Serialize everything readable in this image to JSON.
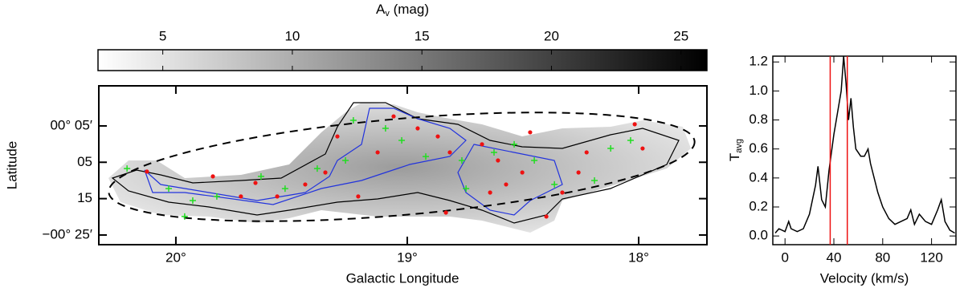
{
  "chart_data": [
    {
      "type": "colorbar",
      "title": {
        "main": "A",
        "sub": "v",
        "rest": " (mag)"
      },
      "clim": [
        2.5,
        26
      ],
      "colormap": [
        "#ffffff",
        "#000000"
      ],
      "ticks": [
        5,
        10,
        15,
        20,
        25
      ]
    },
    {
      "type": "scatter",
      "xlabel": "Galactic Longitude",
      "ylabel": "Latitude",
      "xlim": [
        20.333,
        17.705
      ],
      "ylim": [
        -0.461,
        0.267
      ],
      "xticks": [
        {
          "value": 20,
          "label": "20°"
        },
        {
          "value": 19,
          "label": "19°"
        },
        {
          "value": 18,
          "label": "18°"
        }
      ],
      "yticks": [
        {
          "value": 0.0833,
          "label": "00° 05′"
        },
        {
          "value": -0.0833,
          "label": "05"
        },
        {
          "value": -0.25,
          "label": "15"
        },
        {
          "value": -0.4167,
          "label": "−00° 25′"
        }
      ],
      "series": [
        {
          "color": "#ee1111",
          "marker": "dot",
          "x": [
            20.125,
            19.656,
            19.562,
            19.441,
            19.354,
            19.212,
            19.128,
            19.059,
            18.955,
            18.868,
            18.816,
            18.677,
            18.608,
            18.642,
            18.573,
            18.503,
            18.469,
            18.33,
            18.225,
            18.017,
            17.983,
            18.833,
            18.399,
            18.26,
            19.302,
            19.84,
            19.719
          ],
          "y": [
            -0.126,
            -0.178,
            -0.24,
            -0.185,
            -0.13,
            -0.24,
            -0.038,
            0.127,
            0.072,
            0.035,
            -0.038,
            -0.001,
            -0.075,
            -0.222,
            -0.185,
            -0.13,
            0.054,
            -0.222,
            -0.038,
            0.091,
            -0.02,
            -0.314,
            -0.332,
            -0.13,
            0.035,
            -0.148,
            -0.24
          ]
        },
        {
          "color": "#22dd22",
          "marker": "cross",
          "x": [
            20.211,
            20.031,
            19.927,
            19.823,
            19.632,
            19.528,
            19.389,
            19.267,
            19.233,
            19.094,
            19.024,
            18.92,
            18.764,
            18.625,
            18.538,
            18.451,
            18.364,
            18.191,
            18.121,
            18.035,
            19.962,
            18.746
          ],
          "y": [
            -0.112,
            -0.204,
            -0.259,
            -0.24,
            -0.148,
            -0.204,
            -0.112,
            -0.075,
            0.109,
            0.072,
            0.017,
            -0.057,
            -0.075,
            -0.038,
            -0.001,
            -0.075,
            -0.185,
            -0.167,
            -0.02,
            0.017,
            -0.332,
            -0.204
          ]
        }
      ]
    },
    {
      "type": "line",
      "xlabel": "Velocity (km/s)",
      "ylabel": {
        "main": "T",
        "sub": "avg"
      },
      "xlim": [
        -10,
        140
      ],
      "ylim": [
        -0.06,
        1.24
      ],
      "xticks": [
        0,
        40,
        80,
        120
      ],
      "yticks": [
        {
          "value": 0,
          "label": "0.0"
        },
        0.2,
        0.4,
        0.6,
        0.8,
        {
          "value": 1,
          "label": "1.0"
        },
        1.2
      ],
      "vlines": [
        37,
        51
      ],
      "vline_color": "#ee1111",
      "series": [
        {
          "color": "#000000",
          "x": [
            -8,
            -5,
            0,
            3,
            5,
            10,
            15,
            20,
            25,
            27,
            30,
            33,
            36,
            40,
            43,
            46,
            48,
            50,
            52,
            54,
            56,
            58,
            62,
            65,
            68,
            70,
            73,
            76,
            80,
            85,
            90,
            95,
            100,
            103,
            106,
            110,
            115,
            120,
            125,
            128,
            131,
            135,
            139
          ],
          "values": [
            0.02,
            0.05,
            0.03,
            0.1,
            0.05,
            0.03,
            0.05,
            0.15,
            0.35,
            0.48,
            0.25,
            0.2,
            0.45,
            0.7,
            0.85,
            1.0,
            1.24,
            1.05,
            0.8,
            0.95,
            0.75,
            0.6,
            0.55,
            0.55,
            0.6,
            0.5,
            0.4,
            0.3,
            0.2,
            0.12,
            0.08,
            0.1,
            0.12,
            0.18,
            0.08,
            0.15,
            0.1,
            0.08,
            0.18,
            0.25,
            0.1,
            0.04,
            0.02
          ]
        }
      ]
    }
  ]
}
